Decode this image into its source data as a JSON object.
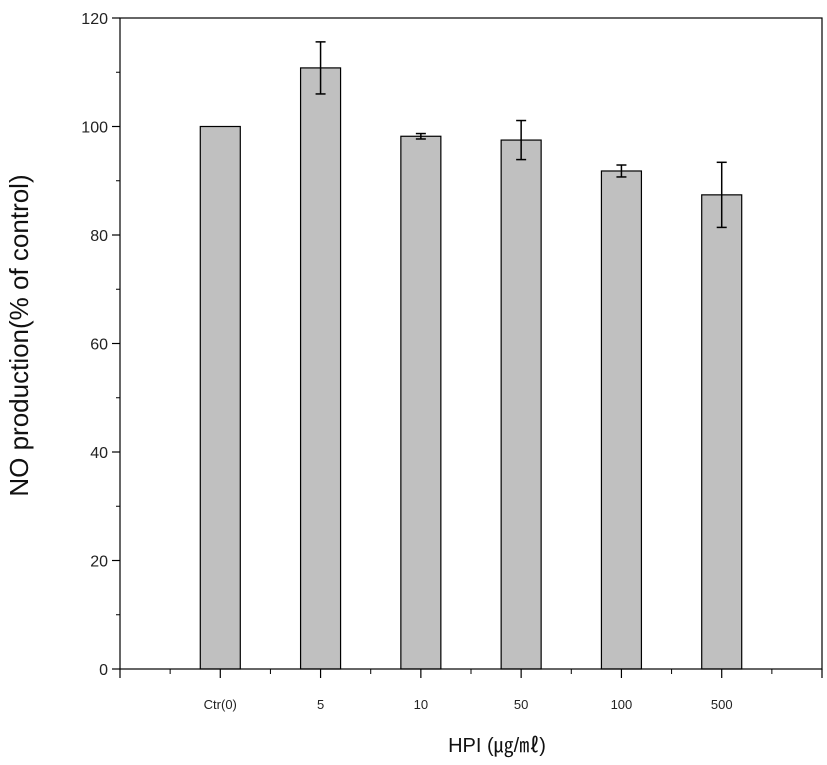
{
  "colors": {
    "bar_fill": "#c0c0c0",
    "bar_stroke": "#000000",
    "axis": "#000000"
  },
  "chart_data": {
    "type": "bar",
    "title": "",
    "xlabel": "HPI (㎍/㎖)",
    "ylabel": "NO production(% of control)",
    "ylim": [
      0,
      120
    ],
    "yticks": [
      0,
      20,
      40,
      60,
      80,
      100,
      120
    ],
    "xtick_labels": [
      "Ctr(0)",
      "5",
      "10",
      "50",
      "100",
      "500"
    ],
    "categories": [
      "Ctr(0)",
      "5",
      "10",
      "50",
      "100",
      "500"
    ],
    "values": [
      100,
      110.8,
      98.2,
      97.5,
      91.8,
      87.4
    ],
    "errors": [
      0,
      4.8,
      0.5,
      3.6,
      1.1,
      6.0
    ],
    "grid": false,
    "legend": "none"
  }
}
